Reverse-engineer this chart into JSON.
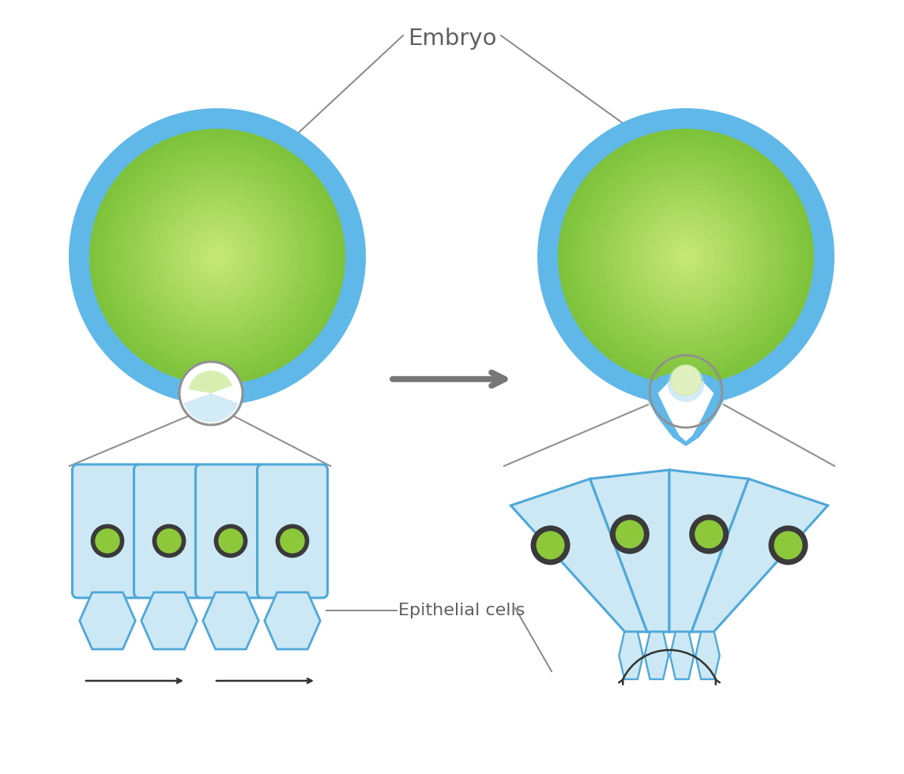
{
  "bg_color": "#ffffff",
  "blue_shell": "#60b8e8",
  "green_edge": "#7dc23a",
  "green_center": "#c8e878",
  "cell_fill": "#cce8f5",
  "cell_border": "#4fa8d8",
  "nucleus_dark": "#3a3a3a",
  "nucleus_green": "#8dc83a",
  "zoom_gray": "#909090",
  "arrow_gray": "#777777",
  "text_gray": "#606060",
  "label_embryo": "Embryo",
  "label_epi": "Epithelial cells",
  "inv_blue": "#5aade0",
  "inv_light": "#a8d8f0"
}
